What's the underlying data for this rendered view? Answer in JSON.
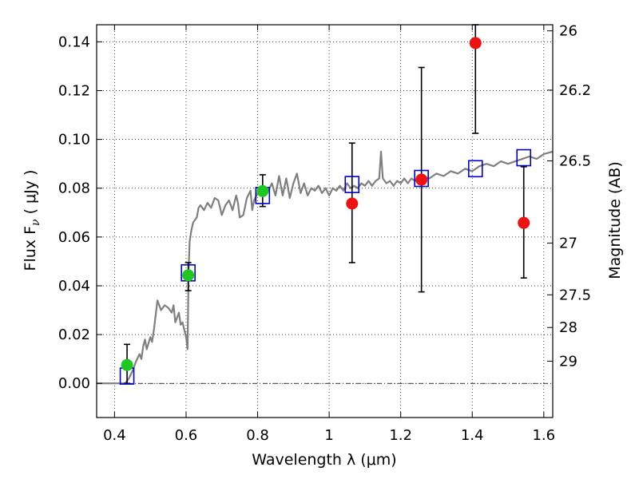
{
  "chart_data": {
    "type": "scatter",
    "xlabel": "Wavelength  λ (μm)",
    "ylabel": "Flux  F",
    "ylabel_subscript": "ν",
    "ylabel_unit": " ( μJy )",
    "y2label": "Magnitude (AB)",
    "xlim": [
      0.35,
      1.625
    ],
    "ylim": [
      -0.014,
      0.147
    ],
    "grid": true,
    "x_ticks": [
      0.4,
      0.6,
      0.8,
      1.0,
      1.2,
      1.4,
      1.6
    ],
    "x_tick_labels": [
      "0.4",
      "0.6",
      "0.8",
      "1",
      "1.2",
      "1.4",
      "1.6"
    ],
    "y_ticks": [
      0.0,
      0.02,
      0.04,
      0.06,
      0.08,
      0.1,
      0.12,
      0.14
    ],
    "y_tick_labels": [
      "0.00",
      "0.02",
      "0.04",
      "0.06",
      "0.08",
      "0.10",
      "0.12",
      "0.14"
    ],
    "y2_ticks": [
      {
        "label": "26",
        "flux": 0.1445
      },
      {
        "label": "26.2",
        "flux": 0.1202
      },
      {
        "label": "26.5",
        "flux": 0.0912
      },
      {
        "label": "27",
        "flux": 0.0575
      },
      {
        "label": "27.5",
        "flux": 0.0363
      },
      {
        "label": "28",
        "flux": 0.0229
      },
      {
        "label": "29",
        "flux": 0.0091
      }
    ],
    "colors": {
      "green": "#1ec81e",
      "red": "#ee1111",
      "model_line": "#7f7f7f",
      "model_box": "#0000cc",
      "zero_line": "#000000"
    },
    "green_points": [
      {
        "x": 0.435,
        "y": 0.0075,
        "err_low": 0.0,
        "err_high": 0.016
      },
      {
        "x": 0.606,
        "y": 0.0443,
        "err_low": 0.038,
        "err_high": 0.0495
      },
      {
        "x": 0.814,
        "y": 0.0788,
        "err_low": 0.0725,
        "err_high": 0.0855
      }
    ],
    "red_points": [
      {
        "x": 1.064,
        "y": 0.0737,
        "err_low": 0.0495,
        "err_high": 0.0985
      },
      {
        "x": 1.258,
        "y": 0.0835,
        "err_low": 0.0375,
        "err_high": 0.1295
      },
      {
        "x": 1.409,
        "y": 0.1395,
        "err_low": 0.1025,
        "err_high": 0.147
      },
      {
        "x": 1.544,
        "y": 0.0658,
        "err_low": 0.0432,
        "err_high": 0.0888
      }
    ],
    "model_boxes": [
      {
        "x": 0.435,
        "y": 0.003
      },
      {
        "x": 0.606,
        "y": 0.0453
      },
      {
        "x": 0.814,
        "y": 0.077
      },
      {
        "x": 1.064,
        "y": 0.0815
      },
      {
        "x": 1.258,
        "y": 0.084
      },
      {
        "x": 1.409,
        "y": 0.088
      },
      {
        "x": 1.544,
        "y": 0.0925
      }
    ],
    "model_spectrum": [
      [
        0.35,
        0.0
      ],
      [
        0.4,
        0.0
      ],
      [
        0.43,
        0.0
      ],
      [
        0.44,
        0.002
      ],
      [
        0.45,
        0.005
      ],
      [
        0.46,
        0.009
      ],
      [
        0.47,
        0.012
      ],
      [
        0.475,
        0.01
      ],
      [
        0.48,
        0.015
      ],
      [
        0.485,
        0.018
      ],
      [
        0.49,
        0.014
      ],
      [
        0.5,
        0.019
      ],
      [
        0.505,
        0.017
      ],
      [
        0.51,
        0.022
      ],
      [
        0.52,
        0.034
      ],
      [
        0.53,
        0.03
      ],
      [
        0.54,
        0.032
      ],
      [
        0.55,
        0.031
      ],
      [
        0.56,
        0.029
      ],
      [
        0.565,
        0.032
      ],
      [
        0.57,
        0.025
      ],
      [
        0.58,
        0.029
      ],
      [
        0.585,
        0.024
      ],
      [
        0.59,
        0.025
      ],
      [
        0.595,
        0.022
      ],
      [
        0.6,
        0.019
      ],
      [
        0.604,
        0.014
      ],
      [
        0.607,
        0.046
      ],
      [
        0.61,
        0.058
      ],
      [
        0.615,
        0.063
      ],
      [
        0.62,
        0.066
      ],
      [
        0.63,
        0.068
      ],
      [
        0.635,
        0.072
      ],
      [
        0.64,
        0.073
      ],
      [
        0.65,
        0.071
      ],
      [
        0.66,
        0.074
      ],
      [
        0.67,
        0.072
      ],
      [
        0.68,
        0.076
      ],
      [
        0.69,
        0.075
      ],
      [
        0.7,
        0.069
      ],
      [
        0.71,
        0.073
      ],
      [
        0.72,
        0.075
      ],
      [
        0.73,
        0.071
      ],
      [
        0.74,
        0.077
      ],
      [
        0.745,
        0.074
      ],
      [
        0.75,
        0.068
      ],
      [
        0.76,
        0.069
      ],
      [
        0.77,
        0.076
      ],
      [
        0.78,
        0.079
      ],
      [
        0.785,
        0.071
      ],
      [
        0.79,
        0.075
      ],
      [
        0.8,
        0.078
      ],
      [
        0.81,
        0.077
      ],
      [
        0.82,
        0.078
      ],
      [
        0.83,
        0.079
      ],
      [
        0.84,
        0.082
      ],
      [
        0.85,
        0.077
      ],
      [
        0.86,
        0.085
      ],
      [
        0.87,
        0.077
      ],
      [
        0.88,
        0.084
      ],
      [
        0.885,
        0.08
      ],
      [
        0.89,
        0.076
      ],
      [
        0.9,
        0.082
      ],
      [
        0.91,
        0.086
      ],
      [
        0.92,
        0.078
      ],
      [
        0.93,
        0.082
      ],
      [
        0.94,
        0.077
      ],
      [
        0.95,
        0.08
      ],
      [
        0.96,
        0.079
      ],
      [
        0.97,
        0.081
      ],
      [
        0.98,
        0.078
      ],
      [
        0.99,
        0.08
      ],
      [
        1.0,
        0.077
      ],
      [
        1.01,
        0.08
      ],
      [
        1.02,
        0.079
      ],
      [
        1.03,
        0.081
      ],
      [
        1.04,
        0.079
      ],
      [
        1.05,
        0.082
      ],
      [
        1.06,
        0.08
      ],
      [
        1.07,
        0.081
      ],
      [
        1.08,
        0.08
      ],
      [
        1.09,
        0.082
      ],
      [
        1.1,
        0.081
      ],
      [
        1.11,
        0.083
      ],
      [
        1.12,
        0.081
      ],
      [
        1.13,
        0.083
      ],
      [
        1.14,
        0.084
      ],
      [
        1.145,
        0.095
      ],
      [
        1.15,
        0.084
      ],
      [
        1.16,
        0.082
      ],
      [
        1.17,
        0.083
      ],
      [
        1.18,
        0.081
      ],
      [
        1.19,
        0.083
      ],
      [
        1.2,
        0.082
      ],
      [
        1.21,
        0.084
      ],
      [
        1.22,
        0.082
      ],
      [
        1.23,
        0.084
      ],
      [
        1.24,
        0.083
      ],
      [
        1.26,
        0.085
      ],
      [
        1.28,
        0.084
      ],
      [
        1.3,
        0.086
      ],
      [
        1.32,
        0.085
      ],
      [
        1.34,
        0.087
      ],
      [
        1.36,
        0.086
      ],
      [
        1.38,
        0.088
      ],
      [
        1.4,
        0.087
      ],
      [
        1.42,
        0.089
      ],
      [
        1.44,
        0.09
      ],
      [
        1.46,
        0.089
      ],
      [
        1.48,
        0.091
      ],
      [
        1.5,
        0.09
      ],
      [
        1.52,
        0.091
      ],
      [
        1.54,
        0.092
      ],
      [
        1.56,
        0.093
      ],
      [
        1.58,
        0.092
      ],
      [
        1.6,
        0.094
      ],
      [
        1.625,
        0.095
      ]
    ]
  }
}
